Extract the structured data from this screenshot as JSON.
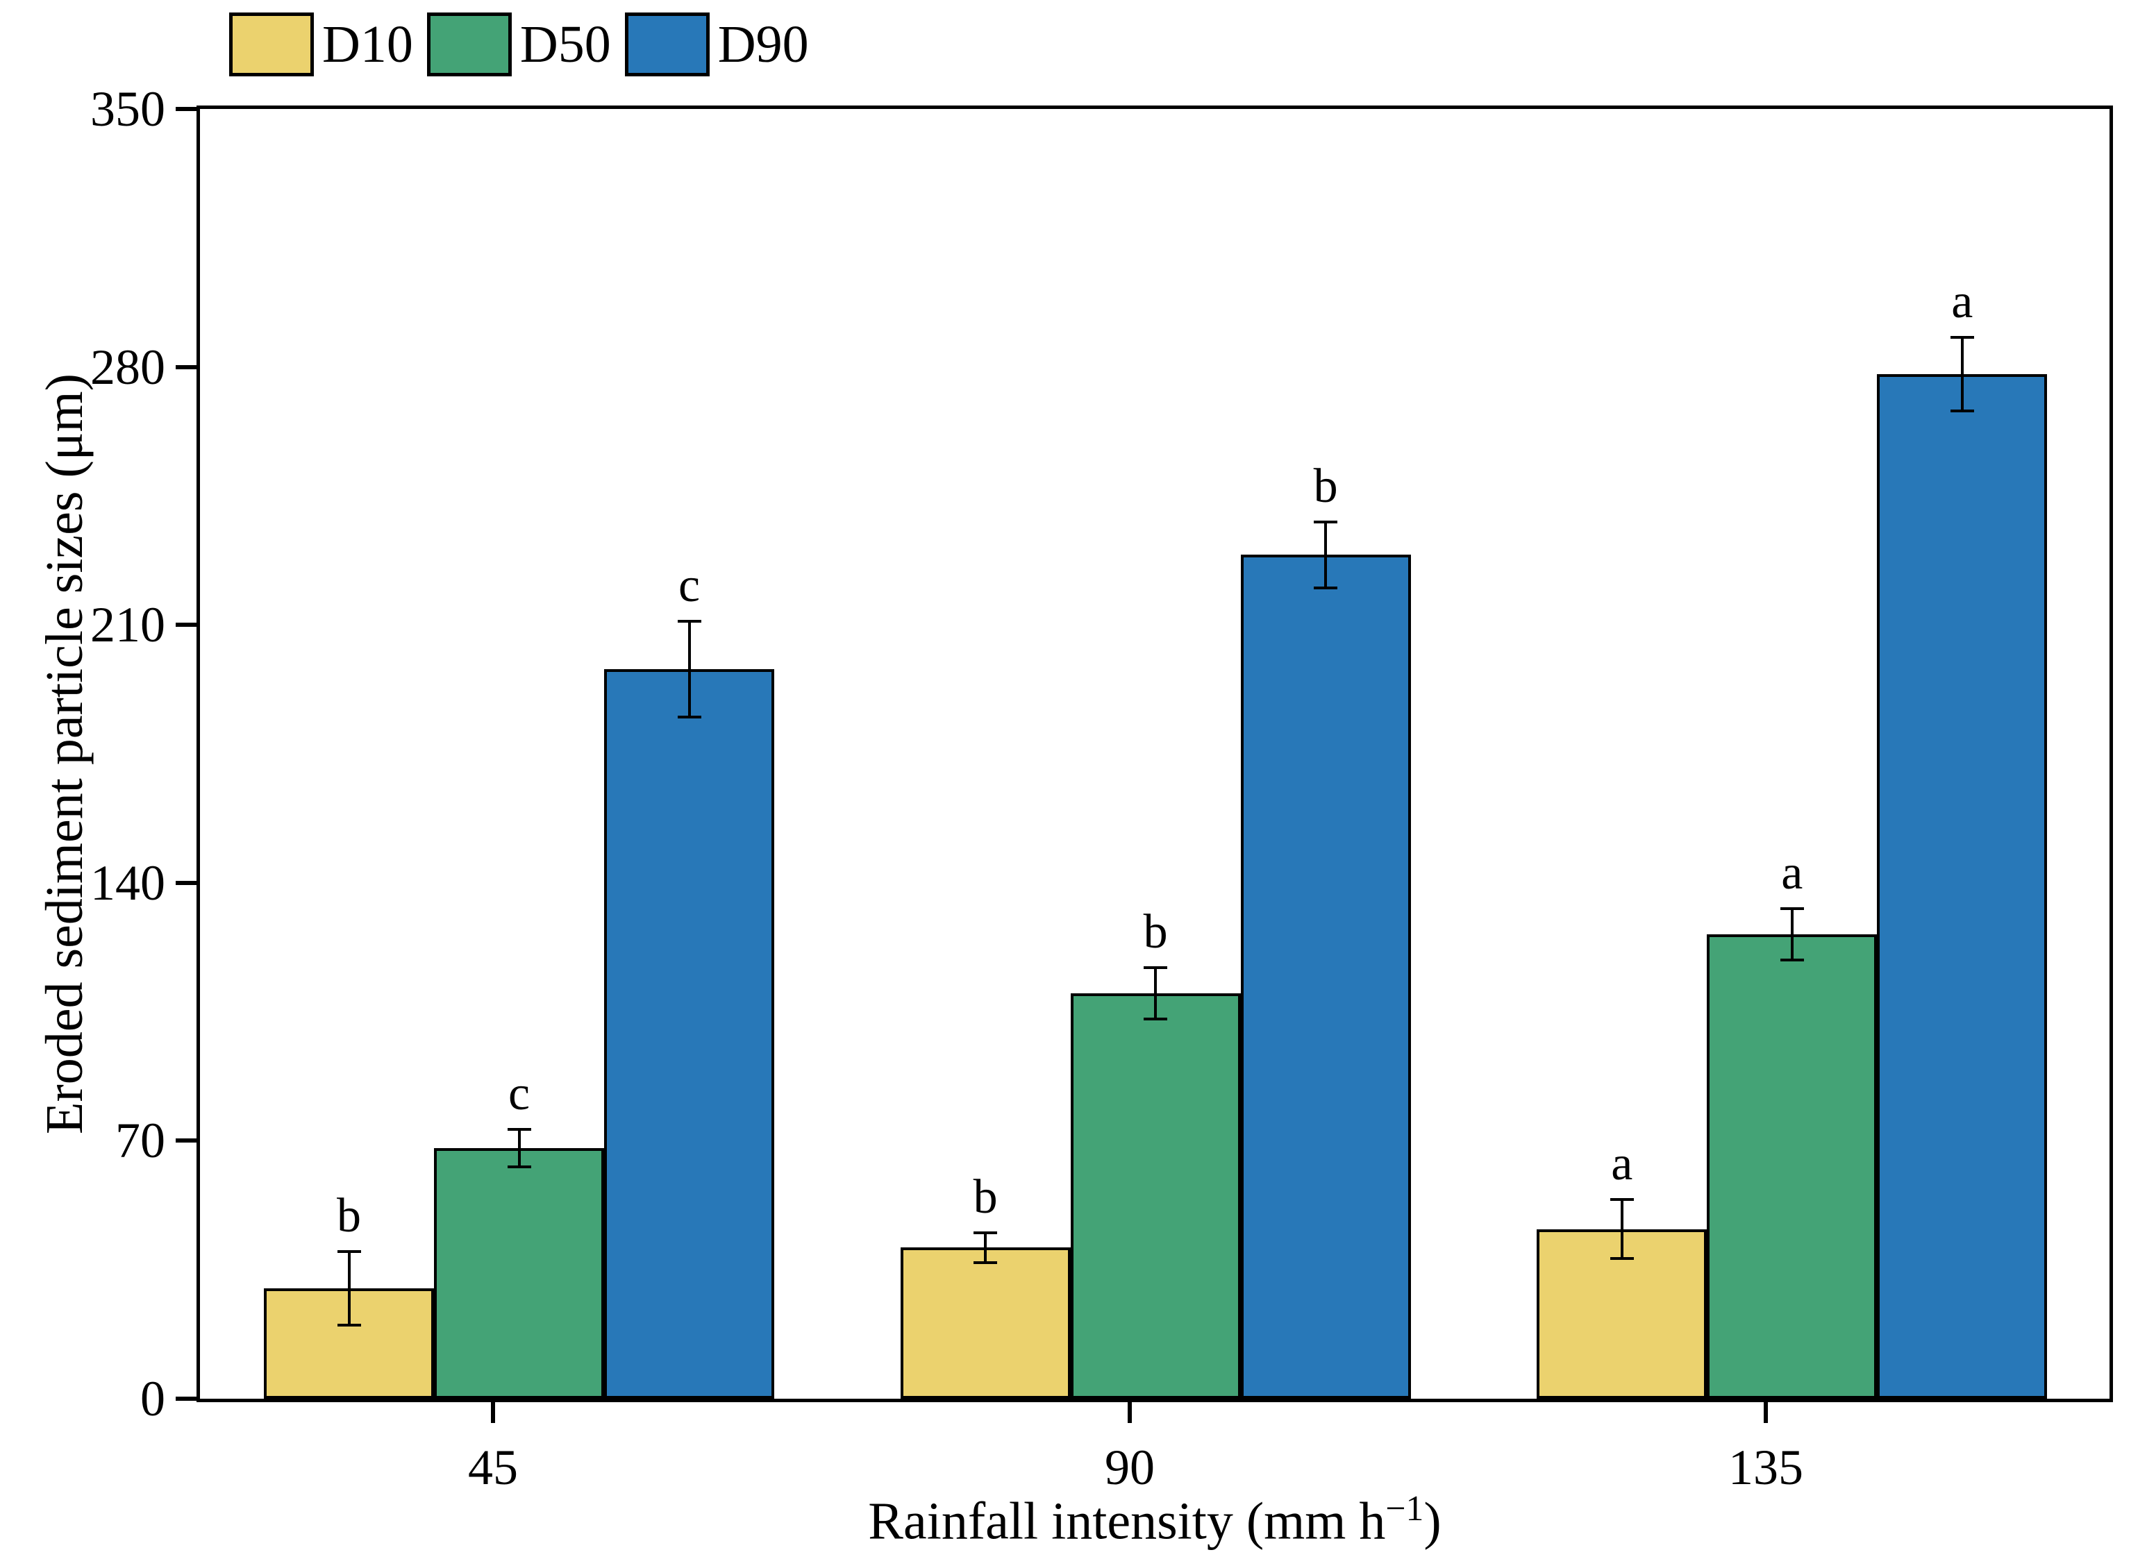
{
  "chart_data": {
    "type": "bar",
    "title": "",
    "categories": [
      "45",
      "90",
      "135"
    ],
    "series": [
      {
        "name": "D10",
        "color": "#EBD26E",
        "values": [
          30,
          41,
          46
        ],
        "errors": [
          10,
          4,
          8
        ],
        "letters": [
          "b",
          "b",
          "a"
        ]
      },
      {
        "name": "D50",
        "color": "#44A376",
        "values": [
          68,
          110,
          126
        ],
        "errors": [
          5,
          7,
          7
        ],
        "letters": [
          "c",
          "b",
          "a"
        ]
      },
      {
        "name": "D90",
        "color": "#2878B8",
        "values": [
          198,
          229,
          278
        ],
        "errors": [
          13,
          9,
          10
        ],
        "letters": [
          "c",
          "b",
          "a"
        ]
      }
    ],
    "xlabel": {
      "prefix": "Rainfall intensity (mm h",
      "superscript": "−1",
      "suffix": ")"
    },
    "ylabel": "Eroded sediment particle sizes (μm)",
    "ylim": [
      0,
      350
    ],
    "yticks": [
      0,
      70,
      140,
      210,
      280,
      350
    ],
    "legend_position": "top-left",
    "grid": false,
    "edge_color": "#000000"
  }
}
